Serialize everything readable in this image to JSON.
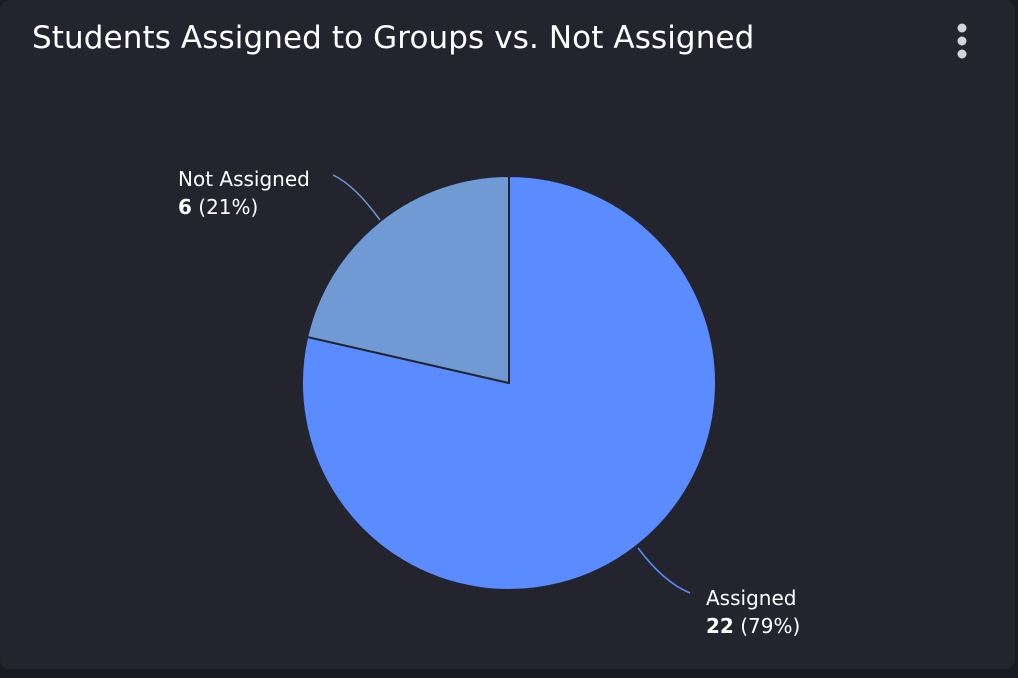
{
  "card": {
    "title": "Students Assigned to Groups vs. Not Assigned",
    "menu_icon": "more-vertical-icon"
  },
  "colors": {
    "card_background": "#23242e",
    "page_background": "#1a1b22",
    "assigned": "#5a8bff",
    "not_assigned": "#6f9ad4",
    "slice_border": "#23242e"
  },
  "chart_data": {
    "type": "pie",
    "title": "Students Assigned to Groups vs. Not Assigned",
    "start_angle_deg": 0,
    "direction": "clockwise",
    "legend": "none",
    "slices": [
      {
        "label": "Assigned",
        "value": 22,
        "percent": "79%",
        "color": "#5a8bff"
      },
      {
        "label": "Not Assigned",
        "value": 6,
        "percent": "21%",
        "color": "#6f9ad4"
      }
    ]
  }
}
